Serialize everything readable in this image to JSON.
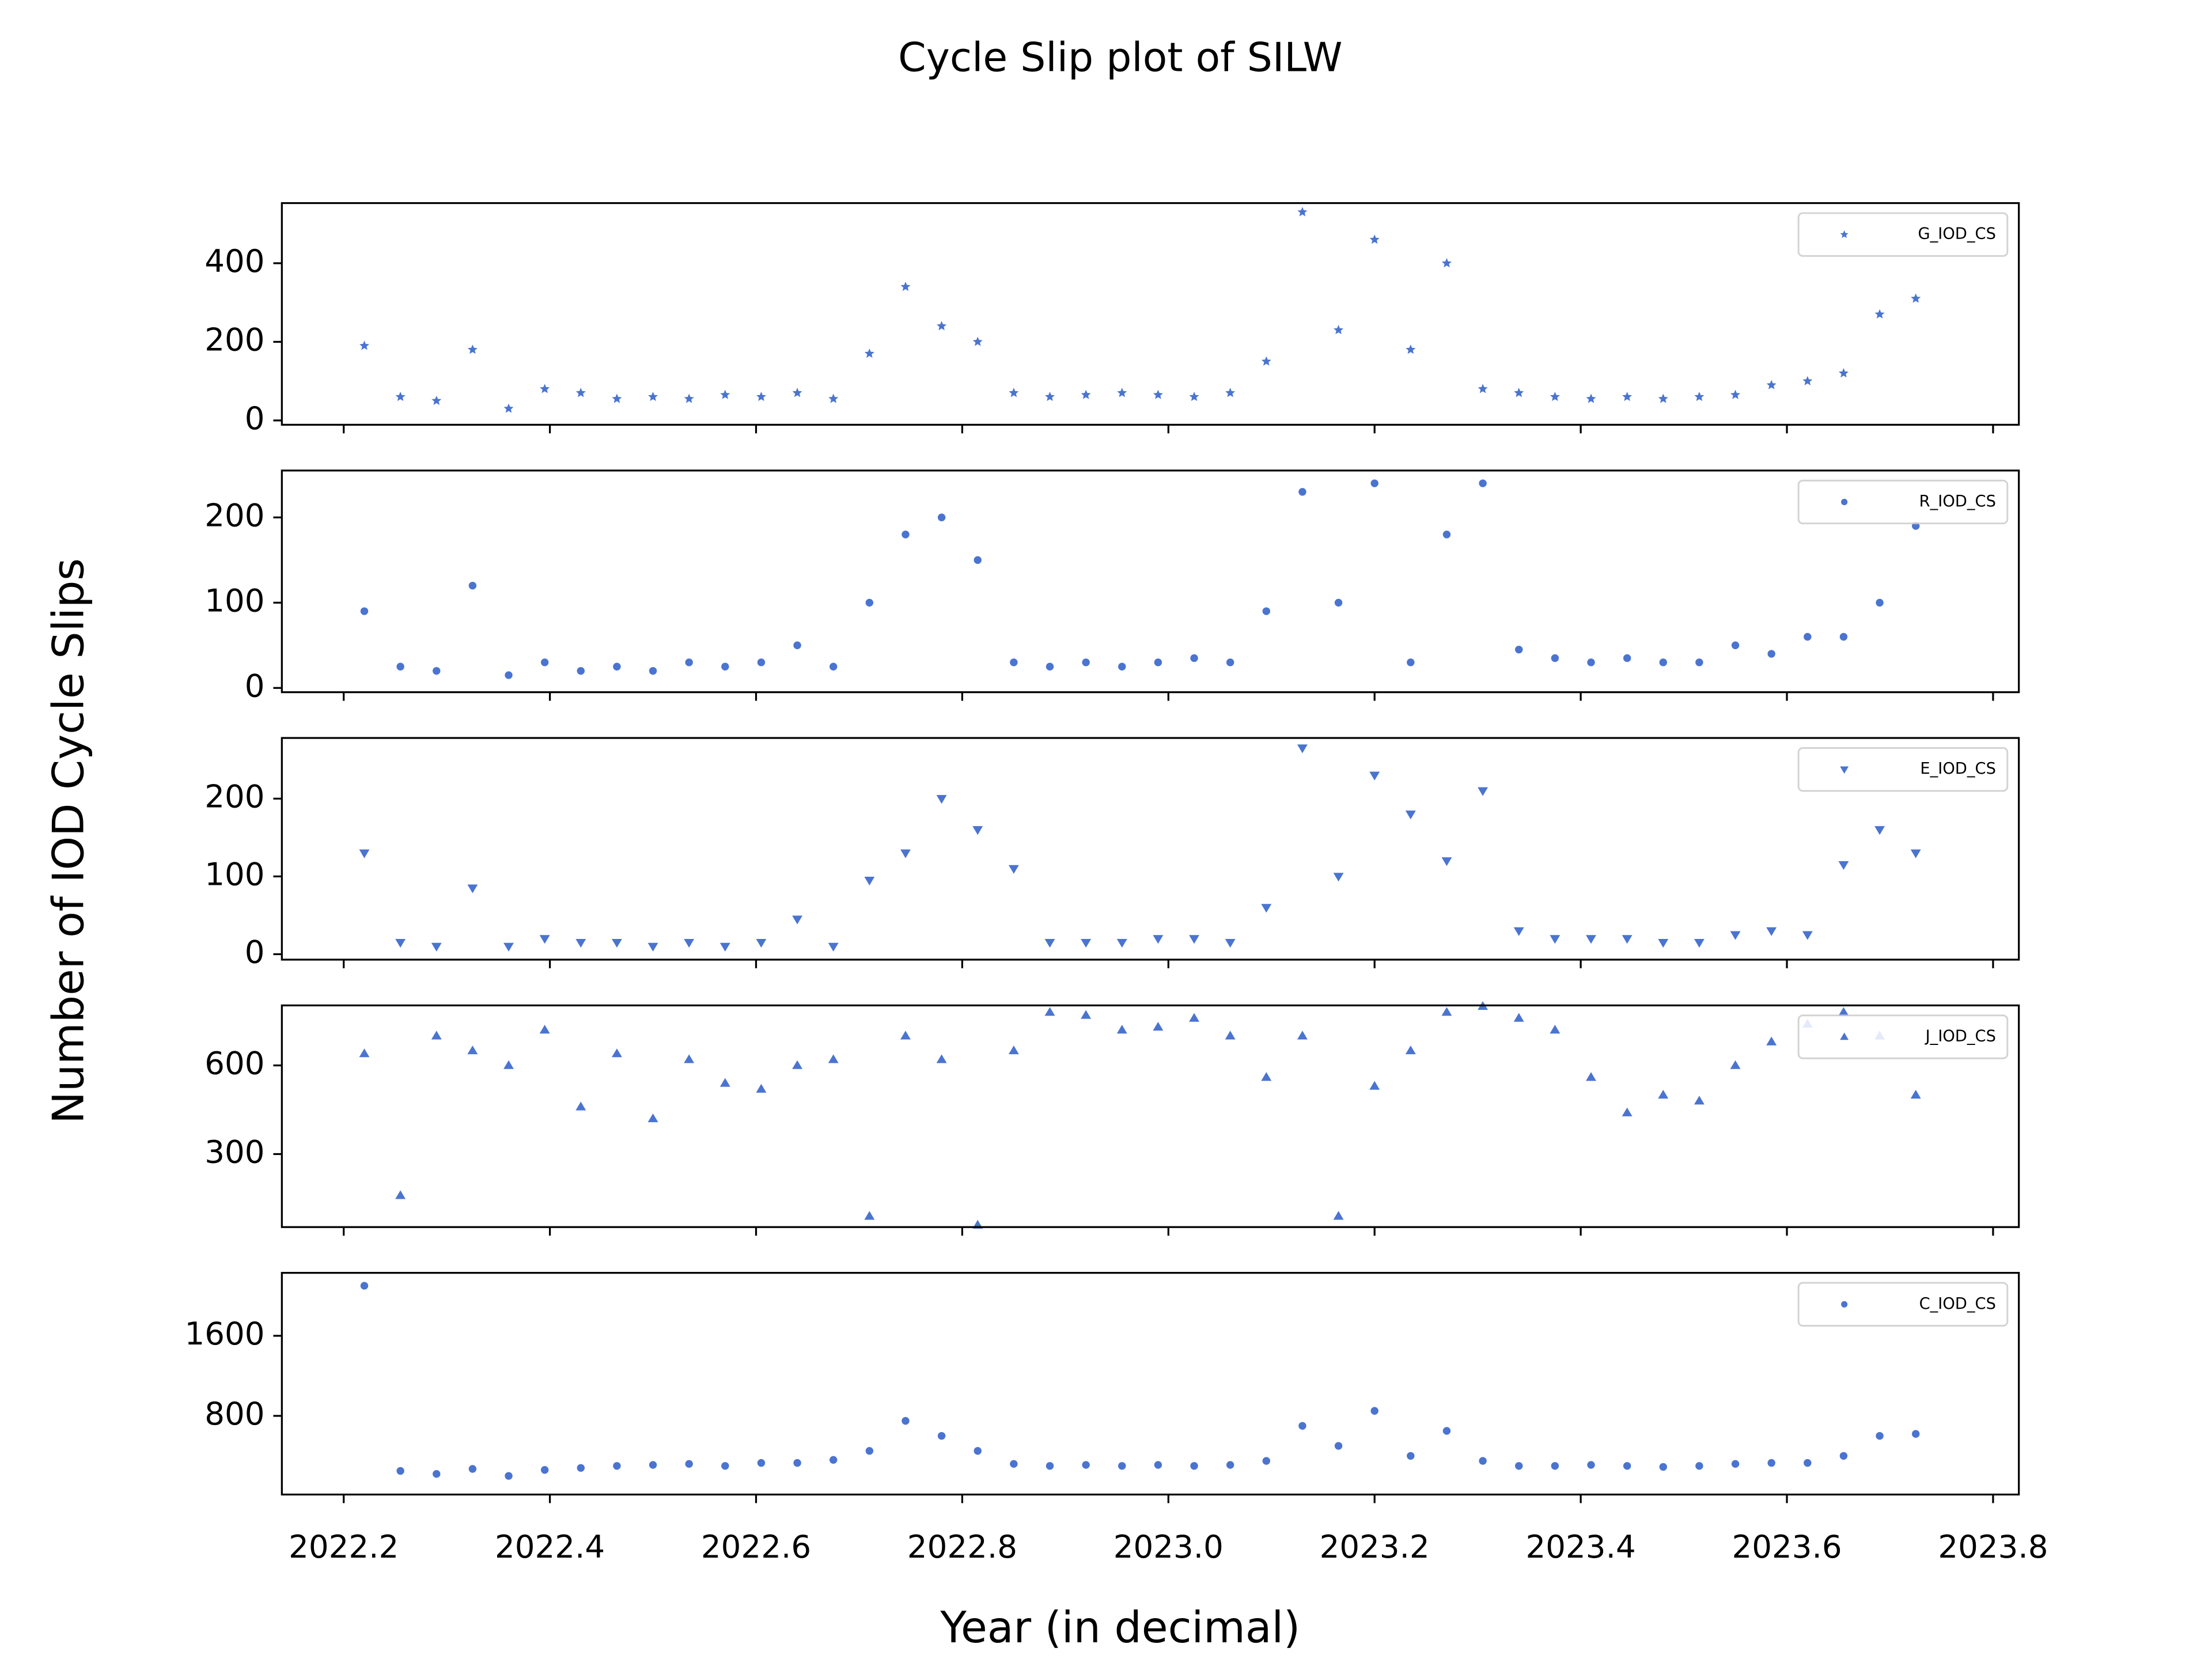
{
  "figure": {
    "title": "Cycle Slip plot of SILW",
    "xlabel": "Year (in decimal)",
    "ylabel": "Number of IOD Cycle Slips"
  },
  "chart_data": [
    {
      "type": "scatter",
      "marker": "star",
      "legend": "upper right",
      "x": [
        2022.22,
        2022.255,
        2022.29,
        2022.325,
        2022.36,
        2022.395,
        2022.43,
        2022.465,
        2022.5,
        2022.535,
        2022.57,
        2022.605,
        2022.64,
        2022.675,
        2022.71,
        2022.745,
        2022.78,
        2022.815,
        2022.85,
        2022.885,
        2022.92,
        2022.955,
        2022.99,
        2023.025,
        2023.06,
        2023.095,
        2023.13,
        2023.165,
        2023.2,
        2023.235,
        2023.27,
        2023.305,
        2023.34,
        2023.375,
        2023.41,
        2023.445,
        2023.48,
        2023.515,
        2023.55,
        2023.585,
        2023.62,
        2023.655,
        2023.69,
        2023.725
      ],
      "series": [
        {
          "name": "G_IOD_CS",
          "color": "#4a74d0",
          "values": [
            190,
            60,
            50,
            180,
            30,
            80,
            70,
            55,
            60,
            55,
            65,
            60,
            70,
            55,
            170,
            340,
            240,
            200,
            70,
            60,
            65,
            70,
            65,
            60,
            70,
            150,
            530,
            230,
            460,
            180,
            400,
            80,
            70,
            60,
            55,
            60,
            55,
            60,
            65,
            90,
            100,
            120,
            270,
            310
          ]
        }
      ],
      "xlim": [
        2022.14,
        2023.825
      ],
      "ylim": [
        -11,
        553
      ],
      "yticks": [
        0,
        200,
        400
      ]
    },
    {
      "type": "scatter",
      "marker": "circle",
      "legend": "upper right",
      "x": [
        2022.22,
        2022.255,
        2022.29,
        2022.325,
        2022.36,
        2022.395,
        2022.43,
        2022.465,
        2022.5,
        2022.535,
        2022.57,
        2022.605,
        2022.64,
        2022.675,
        2022.71,
        2022.745,
        2022.78,
        2022.815,
        2022.85,
        2022.885,
        2022.92,
        2022.955,
        2022.99,
        2023.025,
        2023.06,
        2023.095,
        2023.13,
        2023.165,
        2023.2,
        2023.235,
        2023.27,
        2023.305,
        2023.34,
        2023.375,
        2023.41,
        2023.445,
        2023.48,
        2023.515,
        2023.55,
        2023.585,
        2023.62,
        2023.655,
        2023.69,
        2023.725
      ],
      "series": [
        {
          "name": "R_IOD_CS",
          "color": "#4a74d0",
          "values": [
            90,
            25,
            20,
            120,
            15,
            30,
            20,
            25,
            20,
            30,
            25,
            30,
            50,
            25,
            100,
            180,
            200,
            150,
            30,
            25,
            30,
            25,
            30,
            35,
            30,
            90,
            230,
            100,
            240,
            30,
            180,
            240,
            45,
            35,
            30,
            35,
            30,
            30,
            50,
            40,
            60,
            60,
            100,
            190
          ]
        }
      ],
      "xlim": [
        2022.14,
        2023.825
      ],
      "ylim": [
        -5,
        255
      ],
      "yticks": [
        0,
        100,
        200
      ]
    },
    {
      "type": "scatter",
      "marker": "triangle-down",
      "legend": "upper right",
      "x": [
        2022.22,
        2022.255,
        2022.29,
        2022.325,
        2022.36,
        2022.395,
        2022.43,
        2022.465,
        2022.5,
        2022.535,
        2022.57,
        2022.605,
        2022.64,
        2022.675,
        2022.71,
        2022.745,
        2022.78,
        2022.815,
        2022.85,
        2022.885,
        2022.92,
        2022.955,
        2022.99,
        2023.025,
        2023.06,
        2023.095,
        2023.13,
        2023.165,
        2023.2,
        2023.235,
        2023.27,
        2023.305,
        2023.34,
        2023.375,
        2023.41,
        2023.445,
        2023.48,
        2023.515,
        2023.55,
        2023.585,
        2023.62,
        2023.655,
        2023.69,
        2023.725
      ],
      "series": [
        {
          "name": "E_IOD_CS",
          "color": "#4a74d0",
          "values": [
            130,
            15,
            10,
            85,
            10,
            20,
            15,
            15,
            10,
            15,
            10,
            15,
            45,
            10,
            95,
            130,
            200,
            160,
            110,
            15,
            15,
            15,
            20,
            20,
            15,
            60,
            265,
            100,
            230,
            180,
            120,
            210,
            30,
            20,
            20,
            20,
            15,
            15,
            25,
            30,
            25,
            115,
            160,
            130
          ]
        }
      ],
      "xlim": [
        2022.14,
        2023.825
      ],
      "ylim": [
        -7,
        278
      ],
      "yticks": [
        0,
        100,
        200
      ]
    },
    {
      "type": "scatter",
      "marker": "triangle-up",
      "legend": "upper right",
      "x": [
        2022.22,
        2022.255,
        2022.29,
        2022.325,
        2022.36,
        2022.395,
        2022.43,
        2022.465,
        2022.5,
        2022.535,
        2022.57,
        2022.605,
        2022.64,
        2022.675,
        2022.71,
        2022.745,
        2022.78,
        2022.815,
        2022.85,
        2022.885,
        2022.92,
        2022.955,
        2022.99,
        2023.025,
        2023.06,
        2023.095,
        2023.13,
        2023.165,
        2023.2,
        2023.235,
        2023.27,
        2023.305,
        2023.34,
        2023.375,
        2023.41,
        2023.445,
        2023.48,
        2023.515,
        2023.55,
        2023.585,
        2023.62,
        2023.655,
        2023.69,
        2023.725
      ],
      "series": [
        {
          "name": "J_IOD_CS",
          "color": "#4a74d0",
          "values": [
            640,
            160,
            700,
            650,
            600,
            720,
            460,
            640,
            420,
            620,
            540,
            520,
            600,
            620,
            90,
            700,
            620,
            60,
            650,
            780,
            770,
            720,
            730,
            760,
            700,
            560,
            700,
            90,
            530,
            650,
            780,
            800,
            760,
            720,
            560,
            440,
            500,
            480,
            600,
            680,
            740,
            780,
            700,
            500
          ]
        }
      ],
      "xlim": [
        2022.14,
        2023.825
      ],
      "ylim": [
        53,
        803
      ],
      "yticks": [
        300,
        600
      ]
    },
    {
      "type": "scatter",
      "marker": "circle",
      "legend": "upper right",
      "x": [
        2022.22,
        2022.255,
        2022.29,
        2022.325,
        2022.36,
        2022.395,
        2022.43,
        2022.465,
        2022.5,
        2022.535,
        2022.57,
        2022.605,
        2022.64,
        2022.675,
        2022.71,
        2022.745,
        2022.78,
        2022.815,
        2022.85,
        2022.885,
        2022.92,
        2022.955,
        2022.99,
        2023.025,
        2023.06,
        2023.095,
        2023.13,
        2023.165,
        2023.2,
        2023.235,
        2023.27,
        2023.305,
        2023.34,
        2023.375,
        2023.41,
        2023.445,
        2023.48,
        2023.515,
        2023.55,
        2023.585,
        2023.62,
        2023.655,
        2023.69,
        2023.725
      ],
      "series": [
        {
          "name": "C_IOD_CS",
          "color": "#4a74d0",
          "values": [
            2100,
            250,
            220,
            270,
            200,
            260,
            280,
            300,
            310,
            320,
            300,
            330,
            330,
            360,
            450,
            750,
            600,
            450,
            320,
            300,
            310,
            300,
            310,
            300,
            310,
            350,
            700,
            500,
            850,
            400,
            650,
            350,
            300,
            300,
            310,
            300,
            290,
            300,
            320,
            330,
            330,
            400,
            600,
            620
          ]
        }
      ],
      "xlim": [
        2022.14,
        2023.825
      ],
      "ylim": [
        14,
        2229
      ],
      "yticks": [
        800,
        1600
      ],
      "xticks": [
        2022.2,
        2022.4,
        2022.6,
        2022.8,
        {
          "value": 2023,
          "label": "2023.0"
        },
        2023.2,
        2023.4,
        2023.6,
        2023.8
      ]
    }
  ]
}
